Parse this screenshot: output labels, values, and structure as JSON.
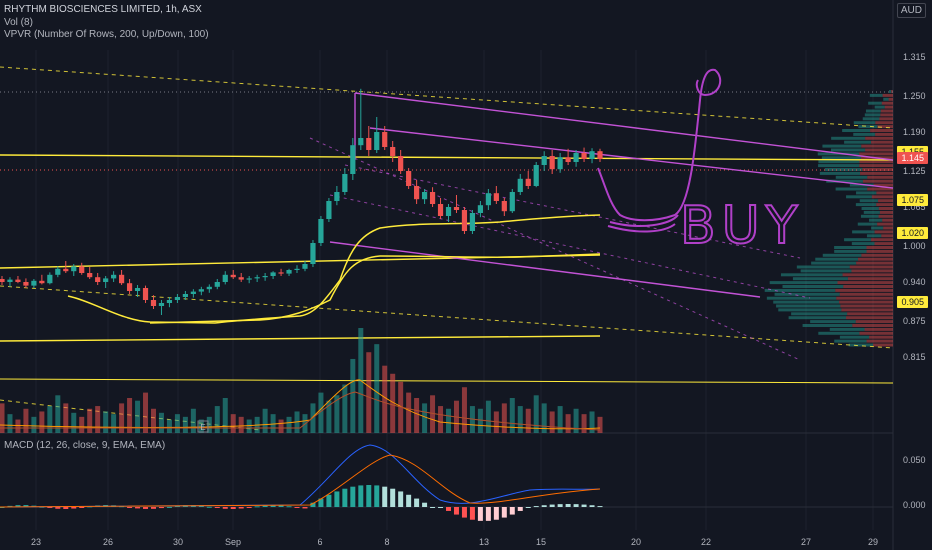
{
  "header": {
    "symbol": "RHYTHM BIOSCIENCES LIMITED, 1h, ASX",
    "vol": "Vol (8)",
    "vpvr": "VPVR (Number Of Rows, 200, Up/Down, 100)",
    "currency": "AUD"
  },
  "macd_label": "MACD (12, 26, close, 9, EMA, EMA)",
  "earnings_marker": "E",
  "annotation": "BUY",
  "price_tags": [
    {
      "label": "1.155",
      "value": 1.155,
      "bg": "#ffeb3b",
      "fg": "#131722"
    },
    {
      "label": "1.145",
      "value": 1.145,
      "bg": "#ef5350",
      "fg": "#ffffff"
    },
    {
      "label": "1.075",
      "value": 1.075,
      "bg": "#ffeb3b",
      "fg": "#131722"
    },
    {
      "label": "1.020",
      "value": 1.02,
      "bg": "#ffeb3b",
      "fg": "#131722"
    },
    {
      "label": "0.905",
      "value": 0.905,
      "bg": "#ffeb3b",
      "fg": "#131722"
    }
  ],
  "colors": {
    "up": "#26a69a",
    "down": "#ef5350",
    "fib": "#ffeb3b",
    "channel": "#c353d6",
    "annotation": "#b040c8",
    "macd": "#2962ff",
    "signal": "#ff6d00"
  },
  "chart_data": {
    "type": "candlestick",
    "price_axis": {
      "ticks": [
        "1.315",
        "1.250",
        "1.190",
        "1.125",
        "1.065",
        "1.000",
        "0.940",
        "0.875",
        "0.815"
      ],
      "range": [
        0.8,
        1.33
      ]
    },
    "time_axis": {
      "ticks": [
        "23",
        "26",
        "30",
        "Sep",
        "6",
        "8",
        "13",
        "15",
        "20",
        "22",
        "27",
        "29"
      ]
    },
    "candles": [
      [
        0.945,
        0.95,
        0.935,
        0.94
      ],
      [
        0.94,
        0.948,
        0.932,
        0.944
      ],
      [
        0.944,
        0.95,
        0.938,
        0.94
      ],
      [
        0.94,
        0.946,
        0.93,
        0.934
      ],
      [
        0.934,
        0.945,
        0.93,
        0.942
      ],
      [
        0.942,
        0.952,
        0.936,
        0.938
      ],
      [
        0.938,
        0.956,
        0.936,
        0.952
      ],
      [
        0.952,
        0.966,
        0.948,
        0.962
      ],
      [
        0.962,
        0.975,
        0.955,
        0.958
      ],
      [
        0.958,
        0.97,
        0.95,
        0.966
      ],
      [
        0.966,
        0.972,
        0.952,
        0.955
      ],
      [
        0.955,
        0.965,
        0.945,
        0.948
      ],
      [
        0.948,
        0.955,
        0.935,
        0.94
      ],
      [
        0.94,
        0.95,
        0.93,
        0.946
      ],
      [
        0.946,
        0.958,
        0.94,
        0.952
      ],
      [
        0.952,
        0.96,
        0.935,
        0.938
      ],
      [
        0.938,
        0.945,
        0.92,
        0.925
      ],
      [
        0.925,
        0.935,
        0.915,
        0.93
      ],
      [
        0.93,
        0.934,
        0.905,
        0.91
      ],
      [
        0.91,
        0.918,
        0.895,
        0.9
      ],
      [
        0.9,
        0.91,
        0.885,
        0.905
      ],
      [
        0.905,
        0.915,
        0.898,
        0.91
      ],
      [
        0.91,
        0.92,
        0.905,
        0.915
      ],
      [
        0.915,
        0.925,
        0.91,
        0.92
      ],
      [
        0.92,
        0.928,
        0.914,
        0.924
      ],
      [
        0.924,
        0.932,
        0.918,
        0.928
      ],
      [
        0.928,
        0.936,
        0.922,
        0.932
      ],
      [
        0.932,
        0.945,
        0.928,
        0.94
      ],
      [
        0.94,
        0.958,
        0.936,
        0.952
      ],
      [
        0.952,
        0.96,
        0.945,
        0.948
      ],
      [
        0.948,
        0.955,
        0.94,
        0.944
      ],
      [
        0.944,
        0.95,
        0.938,
        0.946
      ],
      [
        0.946,
        0.952,
        0.94,
        0.948
      ],
      [
        0.948,
        0.955,
        0.942,
        0.95
      ],
      [
        0.95,
        0.958,
        0.945,
        0.956
      ],
      [
        0.956,
        0.962,
        0.95,
        0.954
      ],
      [
        0.954,
        0.962,
        0.95,
        0.96
      ],
      [
        0.96,
        0.968,
        0.955,
        0.962
      ],
      [
        0.962,
        0.975,
        0.958,
        0.97
      ],
      [
        0.97,
        1.01,
        0.965,
        1.005
      ],
      [
        1.005,
        1.05,
        1.0,
        1.045
      ],
      [
        1.045,
        1.08,
        1.04,
        1.075
      ],
      [
        1.075,
        1.1,
        1.068,
        1.09
      ],
      [
        1.09,
        1.13,
        1.085,
        1.12
      ],
      [
        1.12,
        1.18,
        1.11,
        1.168
      ],
      [
        1.168,
        1.262,
        1.16,
        1.18
      ],
      [
        1.18,
        1.2,
        1.15,
        1.16
      ],
      [
        1.16,
        1.215,
        1.155,
        1.19
      ],
      [
        1.19,
        1.2,
        1.16,
        1.165
      ],
      [
        1.165,
        1.175,
        1.14,
        1.15
      ],
      [
        1.15,
        1.16,
        1.12,
        1.125
      ],
      [
        1.125,
        1.13,
        1.095,
        1.1
      ],
      [
        1.1,
        1.11,
        1.07,
        1.078
      ],
      [
        1.078,
        1.095,
        1.07,
        1.09
      ],
      [
        1.09,
        1.098,
        1.065,
        1.07
      ],
      [
        1.07,
        1.08,
        1.045,
        1.05
      ],
      [
        1.05,
        1.07,
        1.04,
        1.065
      ],
      [
        1.065,
        1.085,
        1.055,
        1.06
      ],
      [
        1.06,
        1.065,
        1.02,
        1.025
      ],
      [
        1.025,
        1.06,
        1.02,
        1.055
      ],
      [
        1.055,
        1.075,
        1.048,
        1.068
      ],
      [
        1.068,
        1.095,
        1.06,
        1.088
      ],
      [
        1.088,
        1.1,
        1.07,
        1.075
      ],
      [
        1.075,
        1.08,
        1.05,
        1.058
      ],
      [
        1.058,
        1.095,
        1.055,
        1.09
      ],
      [
        1.09,
        1.12,
        1.085,
        1.112
      ],
      [
        1.112,
        1.125,
        1.095,
        1.1
      ],
      [
        1.1,
        1.14,
        1.098,
        1.135
      ],
      [
        1.135,
        1.158,
        1.125,
        1.15
      ],
      [
        1.15,
        1.16,
        1.12,
        1.128
      ],
      [
        1.128,
        1.155,
        1.122,
        1.148
      ],
      [
        1.148,
        1.162,
        1.135,
        1.14
      ],
      [
        1.14,
        1.16,
        1.132,
        1.155
      ],
      [
        1.155,
        1.164,
        1.14,
        1.145
      ],
      [
        1.145,
        1.163,
        1.138,
        1.158
      ],
      [
        1.158,
        1.162,
        1.14,
        1.145
      ]
    ],
    "volume": [
      22,
      14,
      10,
      18,
      12,
      16,
      20,
      28,
      22,
      15,
      12,
      18,
      20,
      16,
      14,
      22,
      26,
      24,
      30,
      18,
      15,
      10,
      14,
      12,
      18,
      10,
      12,
      20,
      26,
      14,
      12,
      10,
      12,
      18,
      14,
      10,
      12,
      16,
      14,
      22,
      30,
      24,
      28,
      36,
      55,
      78,
      60,
      66,
      50,
      44,
      38,
      30,
      26,
      22,
      28,
      20,
      18,
      24,
      34,
      20,
      18,
      24,
      16,
      22,
      26,
      20,
      18,
      28,
      22,
      16,
      20,
      14,
      18,
      14,
      16,
      12
    ],
    "vpvr_bins": "volume-at-price histogram (up/down)",
    "moving_averages": "two smoothed price overlays (yellow)",
    "macd": {
      "values": "macd line, signal line and histogram",
      "ticks": [
        "0.050",
        "0.000"
      ]
    }
  }
}
